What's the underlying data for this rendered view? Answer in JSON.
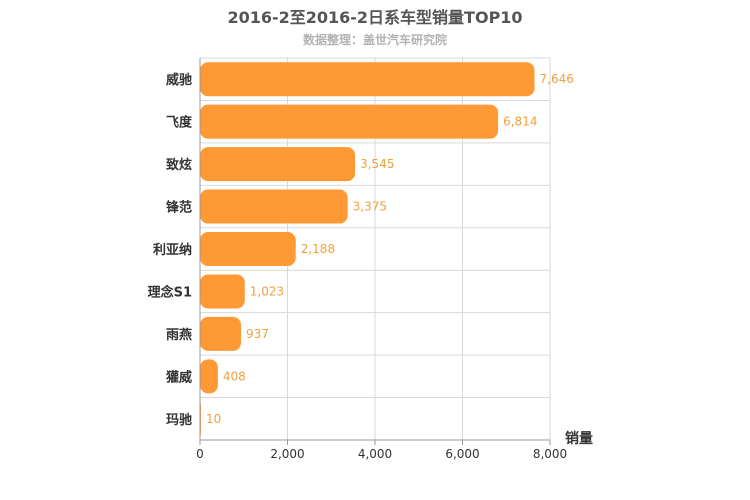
{
  "header": {
    "title": "2016-2至2016-2日系车型销量TOP10",
    "subtitle": "数据整理：盖世汽车研究院"
  },
  "chart_data": {
    "type": "bar",
    "orientation": "horizontal",
    "title": "2016-2至2016-2日系车型销量TOP10",
    "subtitle": "数据整理：盖世汽车研究院",
    "categories": [
      "威驰",
      "飞度",
      "致炫",
      "锋范",
      "利亚纳",
      "理念S1",
      "雨燕",
      "獾威",
      "玛驰"
    ],
    "values": [
      7646,
      6814,
      3545,
      3375,
      2188,
      1023,
      937,
      408,
      10
    ],
    "value_labels": [
      "7,646",
      "6,814",
      "3,545",
      "3,375",
      "2,188",
      "1,023",
      "937",
      "408",
      "10"
    ],
    "xlabel": "销量",
    "ylabel": "",
    "xlim": [
      0,
      8000
    ],
    "ticks": [
      0,
      2000,
      4000,
      6000,
      8000
    ],
    "tick_labels": [
      "0",
      "2,000",
      "4,000",
      "6,000",
      "8,000"
    ],
    "grid": true,
    "bar_color": "#ff9933"
  }
}
